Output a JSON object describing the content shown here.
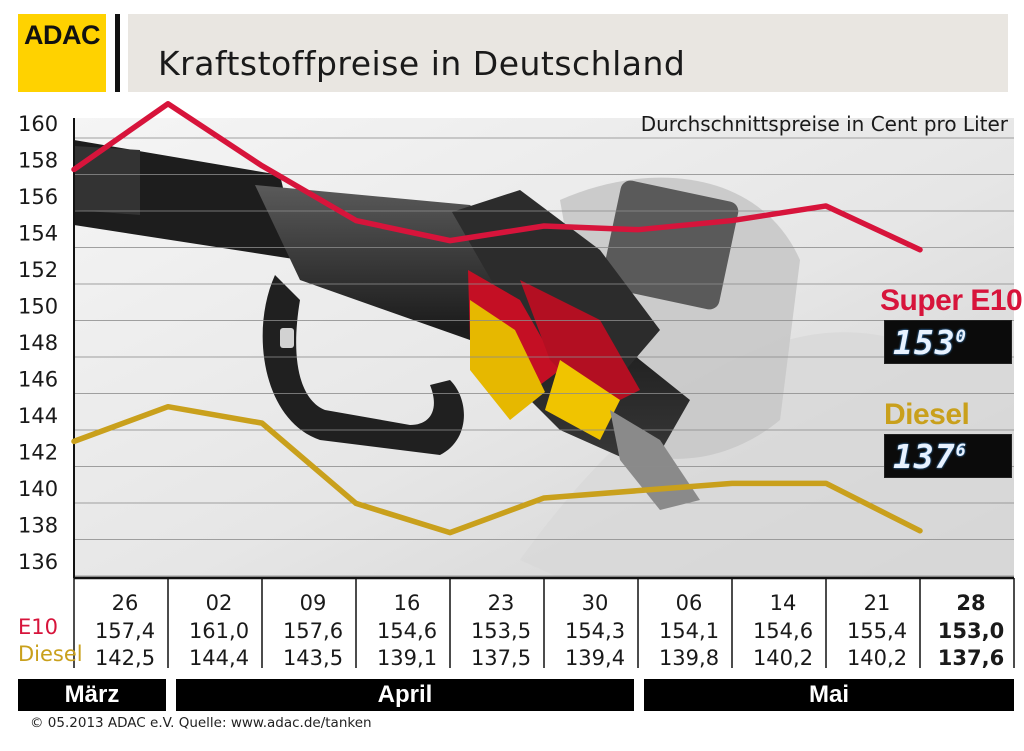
{
  "header": {
    "logo_text": "ADAC",
    "title": "Kraftstoffpreise in Deutschland"
  },
  "chart_data": {
    "type": "line",
    "title": "Kraftstoffpreise in Deutschland",
    "subtitle": "Durchschnittspreise in Cent pro Liter",
    "ylim": [
      135,
      161
    ],
    "yticks": [
      160,
      158,
      156,
      154,
      152,
      150,
      148,
      146,
      144,
      142,
      140,
      138,
      136
    ],
    "grid": true,
    "categories": [
      "26",
      "02",
      "09",
      "16",
      "23",
      "30",
      "06",
      "14",
      "21",
      "28"
    ],
    "series": [
      {
        "name": "E10",
        "color": "#d7143b",
        "values": [
          157.4,
          161.0,
          157.6,
          154.6,
          153.5,
          154.3,
          154.1,
          154.6,
          155.4,
          153.0
        ],
        "labels": [
          "157,4",
          "161,0",
          "157,6",
          "154,6",
          "153,5",
          "154,3",
          "154,1",
          "154,6",
          "155,4",
          "153,0"
        ]
      },
      {
        "name": "Diesel",
        "color": "#c9a01c",
        "values": [
          142.5,
          144.4,
          143.5,
          139.1,
          137.5,
          139.4,
          139.8,
          140.2,
          140.2,
          137.6
        ],
        "labels": [
          "142,5",
          "144,4",
          "143,5",
          "139,1",
          "137,5",
          "139,4",
          "139,8",
          "140,2",
          "140,2",
          "137,6"
        ]
      }
    ],
    "row_labels": {
      "e10": "E10",
      "diesel": "Diesel"
    },
    "months": [
      {
        "name": "März",
        "span": 1
      },
      {
        "name": "April",
        "span": 5
      },
      {
        "name": "Mai",
        "span": 4
      }
    ],
    "current": {
      "e10_label": "Super E10",
      "e10_display_main": "153",
      "e10_display_dec": "0",
      "diesel_label": "Diesel",
      "diesel_display_main": "137",
      "diesel_display_dec": "6"
    }
  },
  "footer": {
    "text": "© 05.2013  ADAC e.V.     Quelle: www.adac.de/tanken"
  }
}
